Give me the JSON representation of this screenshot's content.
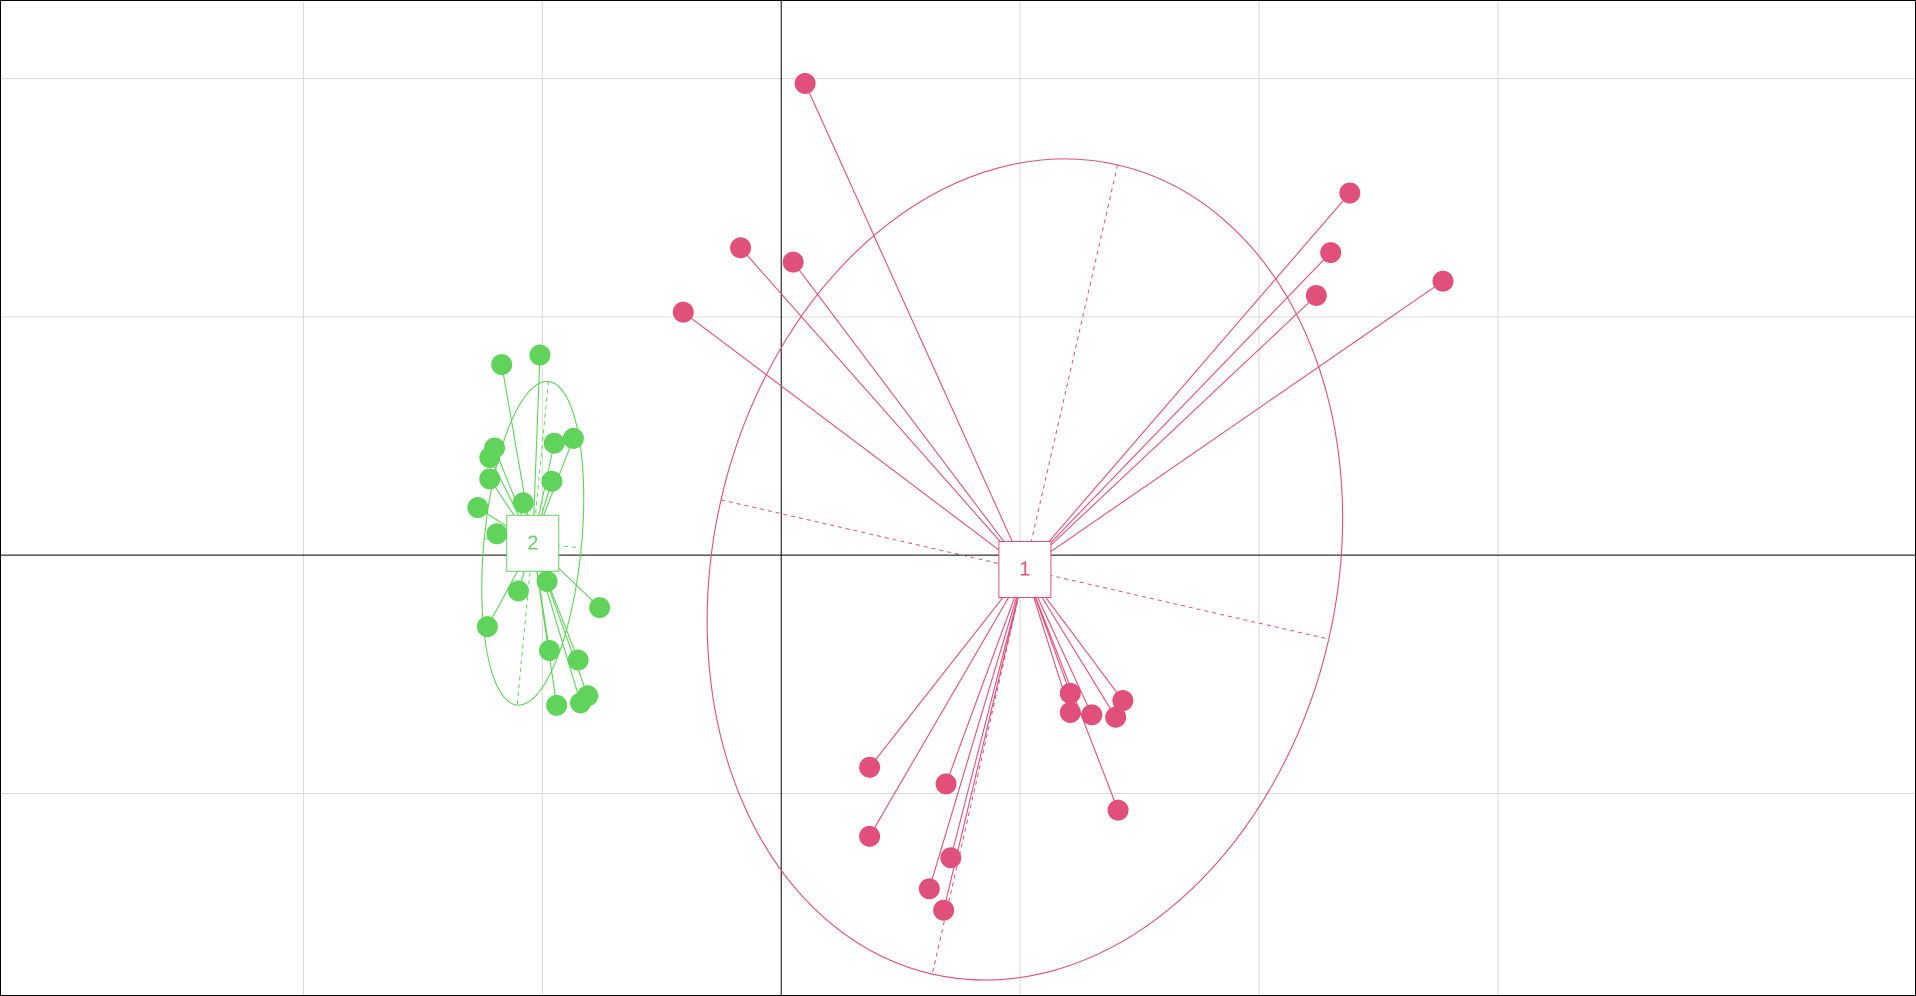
{
  "chart_data": {
    "type": "scatter",
    "title": "",
    "xlabel": "",
    "ylabel": "",
    "xlim": [
      -3.27,
      4.75
    ],
    "ylim": [
      -1.85,
      2.33
    ],
    "grid": true,
    "grid_x": [
      -2,
      -1,
      0,
      1,
      2,
      3
    ],
    "grid_y": [
      -1,
      0,
      1,
      2
    ],
    "groups": [
      {
        "label": "1",
        "color": "#e0507a",
        "center": [
          1.02,
          -0.06
        ],
        "ellipse": {
          "rx": 1.305,
          "ry": 1.742,
          "rotation_deg": 12.9
        },
        "points": [
          [
            0.1,
            1.98
          ],
          [
            -0.17,
            1.29
          ],
          [
            0.05,
            1.23
          ],
          [
            -0.41,
            1.02
          ],
          [
            2.38,
            1.52
          ],
          [
            2.3,
            1.27
          ],
          [
            2.24,
            1.09
          ],
          [
            2.77,
            1.15
          ],
          [
            1.21,
            -0.58
          ],
          [
            1.3,
            -0.67
          ],
          [
            1.4,
            -0.68
          ],
          [
            1.21,
            -0.66
          ],
          [
            1.43,
            -0.61
          ],
          [
            1.41,
            -1.07
          ],
          [
            0.37,
            -0.89
          ],
          [
            0.69,
            -0.96
          ],
          [
            0.37,
            -1.18
          ],
          [
            0.71,
            -1.27
          ],
          [
            0.62,
            -1.4
          ],
          [
            0.68,
            -1.49
          ]
        ]
      },
      {
        "label": "2",
        "color": "#5fd35a",
        "center": [
          -1.04,
          0.05
        ],
        "ellipse": {
          "rx": 0.204,
          "ry": 0.682,
          "rotation_deg": 5.5
        },
        "points": [
          [
            -1.17,
            0.8
          ],
          [
            -1.01,
            0.84
          ],
          [
            -1.2,
            0.45
          ],
          [
            -1.22,
            0.41
          ],
          [
            -0.95,
            0.47
          ],
          [
            -0.87,
            0.49
          ],
          [
            -1.22,
            0.32
          ],
          [
            -0.96,
            0.31
          ],
          [
            -1.27,
            0.2
          ],
          [
            -1.08,
            0.22
          ],
          [
            -1.19,
            0.09
          ],
          [
            -1.1,
            -0.15
          ],
          [
            -0.98,
            -0.11
          ],
          [
            -0.76,
            -0.22
          ],
          [
            -1.23,
            -0.3
          ],
          [
            -0.97,
            -0.4
          ],
          [
            -0.85,
            -0.44
          ],
          [
            -0.81,
            -0.59
          ],
          [
            -0.94,
            -0.63
          ],
          [
            -0.84,
            -0.62
          ]
        ]
      }
    ]
  }
}
